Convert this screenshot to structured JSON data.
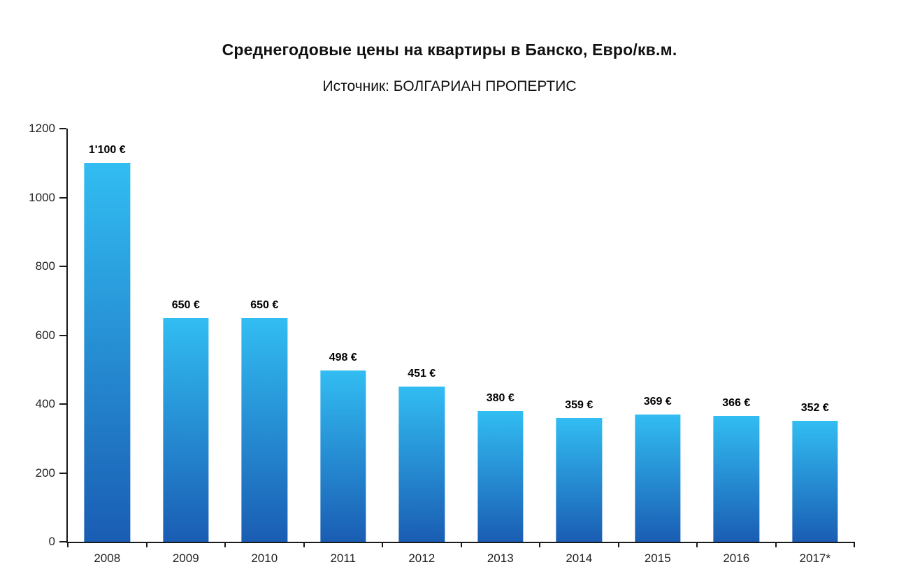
{
  "chart_data": {
    "type": "bar",
    "title": "Среднегодовые цены на квартиры в Банско, Евро/кв.м.",
    "subtitle": "Источник: БОЛГАРИАН ПРОПЕРТИС",
    "categories": [
      "2008",
      "2009",
      "2010",
      "2011",
      "2012",
      "2013",
      "2014",
      "2015",
      "2016",
      "2017*"
    ],
    "values": [
      1100,
      650,
      650,
      498,
      451,
      380,
      359,
      369,
      366,
      352
    ],
    "value_labels": [
      "1'100 €",
      "650 €",
      "650 €",
      "498 €",
      "451 €",
      "380 €",
      "359 €",
      "369 €",
      "366 €",
      "352 €"
    ],
    "xlabel": "",
    "ylabel": "",
    "ylim": [
      0,
      1200
    ],
    "y_ticks": [
      0,
      200,
      400,
      600,
      800,
      1000,
      1200
    ],
    "grid": false,
    "legend": false,
    "colors": {
      "bar_gradient_top": "#32bdf2",
      "bar_gradient_bottom": "#1a5db3",
      "axis": "#1a1a1a",
      "text": "#222222"
    }
  }
}
